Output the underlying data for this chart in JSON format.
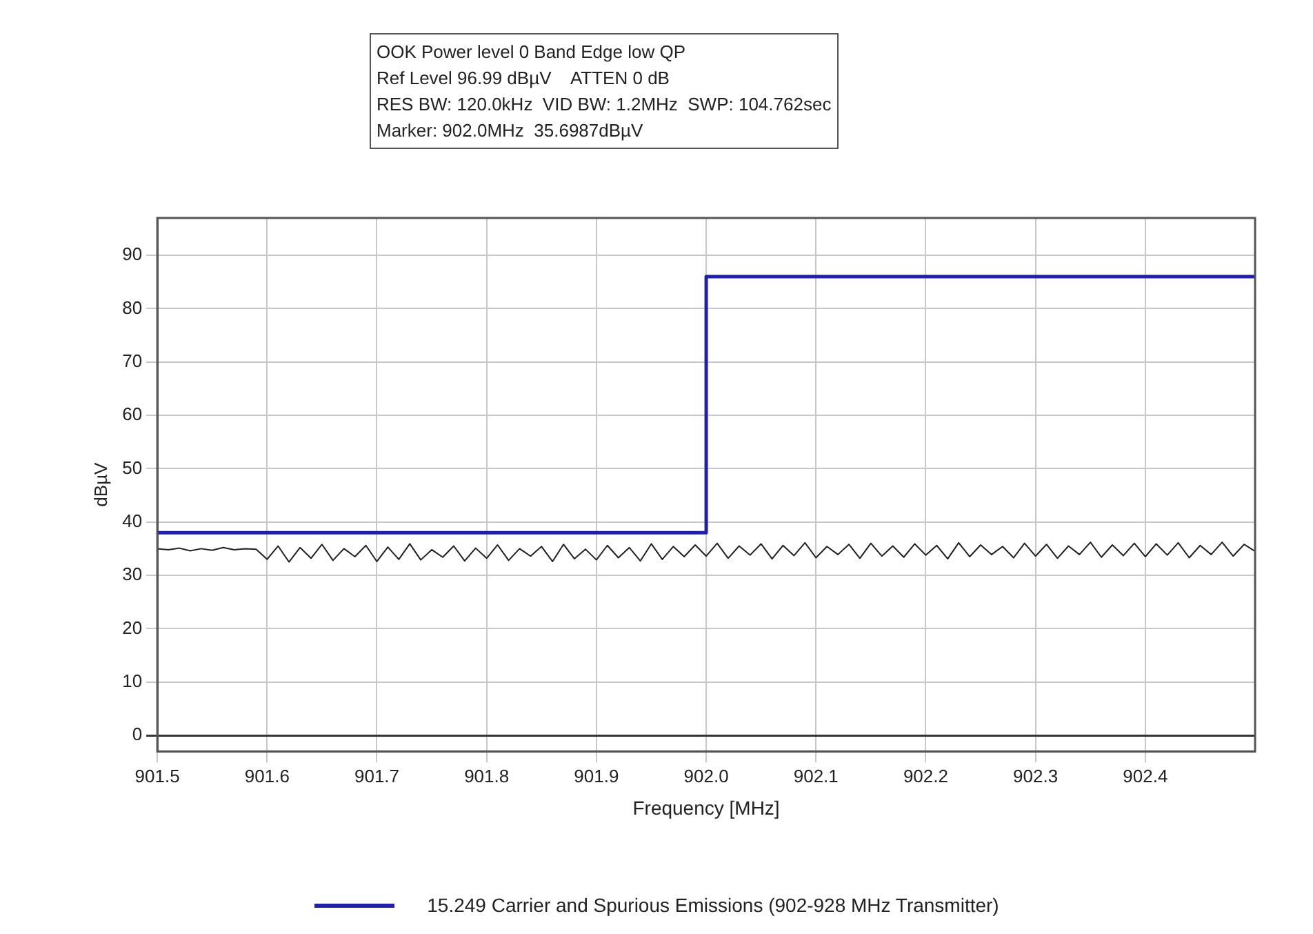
{
  "chart_data": {
    "type": "line",
    "title": "OOK Power level 0 Band Edge low QP",
    "annotations": [
      "Ref Level 96.99 dBµV    ATTEN 0 dB",
      "RES BW: 120.0kHz  VID BW: 1.2MHz  SWP: 104.762sec",
      "Marker: 902.0MHz  35.6987dBµV"
    ],
    "xlabel": "Frequency [MHz]",
    "ylabel": "dBµV",
    "xlim": [
      901.5,
      902.5
    ],
    "xticks": [
      901.5,
      901.6,
      901.7,
      901.8,
      901.9,
      {
        "value": 902,
        "label": "902.0"
      },
      902.1,
      902.2,
      902.3,
      902.4
    ],
    "ylim": [
      -3,
      97
    ],
    "yticks": [
      0,
      10,
      20,
      30,
      40,
      50,
      60,
      70,
      80,
      90
    ],
    "grid": true,
    "legend": "bottom",
    "marker": "none",
    "series": [
      {
        "type": "line",
        "color": "#202020",
        "x": [
          901.5,
          901.51,
          901.52,
          901.53,
          901.54,
          901.55,
          901.56,
          901.57,
          901.58,
          901.59,
          901.6,
          901.61,
          901.62,
          901.63,
          901.64,
          901.65,
          901.66,
          901.67,
          901.68,
          901.69,
          901.7,
          901.71,
          901.72,
          901.73,
          901.74,
          901.75,
          901.76,
          901.77,
          901.78,
          901.79,
          901.8,
          901.81,
          901.82,
          901.83,
          901.84,
          901.85,
          901.86,
          901.87,
          901.88,
          901.89,
          901.9,
          901.91,
          901.92,
          901.93,
          901.94,
          901.95,
          901.96,
          901.97,
          901.98,
          901.99,
          902,
          902.01,
          902.02,
          902.03,
          902.04,
          902.05,
          902.06,
          902.07,
          902.08,
          902.09,
          902.1,
          902.11,
          902.12,
          902.13,
          902.14,
          902.15,
          902.16,
          902.17,
          902.18,
          902.19,
          902.2,
          902.21,
          902.22,
          902.23,
          902.24,
          902.25,
          902.26,
          902.27,
          902.28,
          902.29,
          902.3,
          902.31,
          902.32,
          902.33,
          902.34,
          902.35,
          902.36,
          902.37,
          902.38,
          902.39,
          902.4,
          902.41,
          902.42,
          902.43,
          902.44,
          902.45,
          902.46,
          902.47,
          902.48,
          902.49,
          902.5
        ],
        "values": [
          35,
          34.8,
          35.1,
          34.6,
          35,
          34.7,
          35.2,
          34.8,
          35,
          34.9,
          33,
          35.5,
          32.5,
          35.2,
          33.2,
          35.8,
          32.8,
          35,
          33.5,
          35.6,
          32.6,
          35.3,
          33,
          35.9,
          32.9,
          34.8,
          33.4,
          35.5,
          32.7,
          35.1,
          33.2,
          35.7,
          32.8,
          35,
          33.6,
          35.4,
          32.6,
          35.8,
          33.1,
          34.9,
          32.9,
          35.6,
          33.3,
          35.2,
          32.7,
          35.9,
          33,
          35.4,
          33.5,
          35.7,
          33.6,
          36,
          33.2,
          35.5,
          33.8,
          35.9,
          33.1,
          35.6,
          33.7,
          36.1,
          33.3,
          35.4,
          33.9,
          35.8,
          33.2,
          36,
          33.6,
          35.5,
          33.4,
          35.9,
          33.8,
          35.6,
          33.1,
          36.1,
          33.5,
          35.7,
          33.9,
          35.4,
          33.3,
          36,
          33.6,
          35.8,
          33.2,
          35.5,
          33.9,
          36.2,
          33.4,
          35.7,
          33.7,
          36,
          33.5,
          35.9,
          33.8,
          36.1,
          33.3,
          35.6,
          33.9,
          36.2,
          33.6,
          35.8,
          34.5
        ]
      },
      {
        "type": "step",
        "name": "15.249 Carrier and Spurious Emissions (902-928 MHz Transmitter)",
        "color": "#2020a8",
        "x": [
          901.5,
          902,
          902.5
        ],
        "values": [
          38,
          86,
          86
        ]
      }
    ]
  }
}
